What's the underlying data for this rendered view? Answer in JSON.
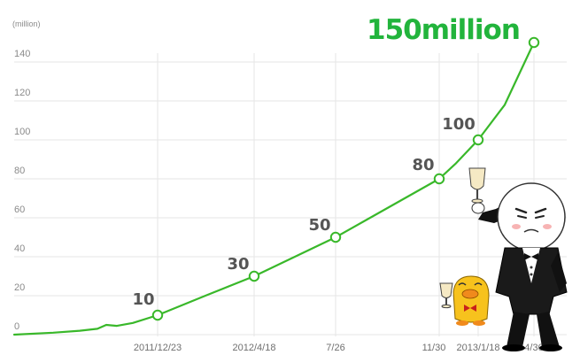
{
  "chart_data": {
    "type": "line",
    "title": "150million",
    "ylabel": "(million)",
    "ylim": [
      0,
      150
    ],
    "yticks": [
      "0",
      "20",
      "40",
      "60",
      "80",
      "100",
      "120",
      "140"
    ],
    "grid": true,
    "colors": {
      "line": "#39b82a",
      "grid": "#e6e6e6",
      "headline": "#22b43c"
    },
    "x_tick_labels": [
      "2011/12/23",
      "2012/4/18",
      "7/26",
      "11/30",
      "2013/1/18",
      "4/30"
    ],
    "series": [
      {
        "values_curve": [
          0,
          1,
          2,
          3,
          5,
          4.5,
          6,
          10,
          20,
          30,
          40,
          50,
          60,
          70,
          80,
          88,
          100,
          118,
          150
        ],
        "milestones": [
          {
            "date": "2011/12/23",
            "value": 10,
            "label": "10"
          },
          {
            "date": "2012/4/18",
            "value": 30,
            "label": "30"
          },
          {
            "date": "7/26",
            "value": 50,
            "label": "50"
          },
          {
            "date": "11/30",
            "value": 80,
            "label": "80"
          },
          {
            "date": "2013/1/18",
            "value": 100,
            "label": "100"
          },
          {
            "date": "4/30",
            "value": 150,
            "label": ""
          }
        ]
      }
    ]
  }
}
